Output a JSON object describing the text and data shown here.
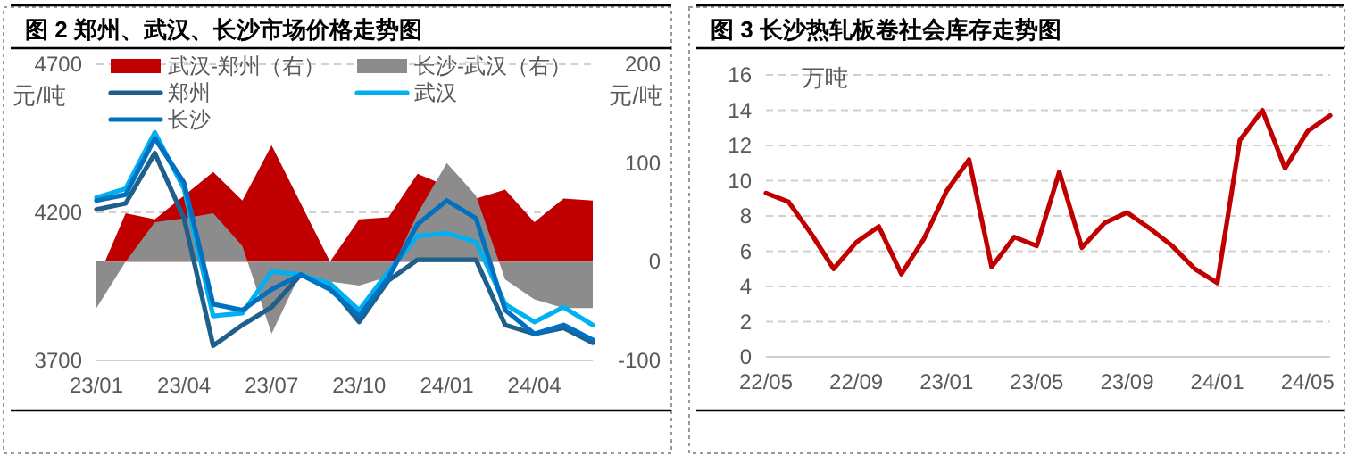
{
  "chart_data": [
    {
      "type": "line",
      "title": "图 2 郑州、武汉、长沙市场价格走势图",
      "ylabel": "元/吨",
      "y2label": "元/吨",
      "categories": [
        "23/01",
        null,
        null,
        "23/04",
        null,
        null,
        "23/07",
        null,
        null,
        "23/10",
        null,
        null,
        "24/01",
        null,
        null,
        "24/04",
        null,
        null
      ],
      "ylim": [
        3700,
        4700
      ],
      "yticks": [
        3700,
        4200,
        4700
      ],
      "y2lim": [
        -100,
        200
      ],
      "y2ticks": [
        -100,
        0,
        100,
        200
      ],
      "grid": "y",
      "legend": "top",
      "series": [
        {
          "name": "武汉-郑州（右）",
          "type": "area",
          "axis": "y2",
          "color": "#c00000",
          "values": [
            -20,
            49,
            43,
            67,
            91,
            62,
            118,
            null,
            0,
            43,
            45,
            89,
            null,
            64,
            73,
            40,
            64,
            62
          ]
        },
        {
          "name": "长沙-武汉（右）",
          "type": "area",
          "axis": "y2",
          "color": "#8c8c8c",
          "values": [
            -47,
            0,
            40,
            44,
            49,
            16,
            -73,
            -11,
            -20,
            -24,
            -15,
            49,
            100,
            67,
            -18,
            -38,
            -47,
            -47
          ]
        },
        {
          "name": "郑州",
          "type": "line",
          "axis": "y",
          "color": "#1f5f8b",
          "values": [
            4210,
            4230,
            4400,
            4180,
            3750,
            3820,
            3880,
            3990,
            3950,
            3830,
            3970,
            4040,
            4040,
            4040,
            3820,
            3790,
            3810,
            3760
          ]
        },
        {
          "name": "武汉",
          "type": "line",
          "axis": "y",
          "color": "#00b0f0",
          "values": [
            4250,
            4280,
            4470,
            4280,
            3850,
            3860,
            4000,
            3990,
            3960,
            3870,
            4000,
            4120,
            4130,
            4100,
            3890,
            3830,
            3880,
            3820
          ]
        },
        {
          "name": "长沙",
          "type": "line",
          "axis": "y",
          "color": "#0070c0",
          "values": [
            4240,
            4260,
            4450,
            4300,
            3890,
            3870,
            3940,
            3990,
            3940,
            3850,
            3980,
            4160,
            4240,
            4180,
            3870,
            3790,
            3820,
            3770
          ]
        }
      ]
    },
    {
      "type": "line",
      "title": "图 3 长沙热轧板卷社会库存走势图",
      "ylabel": "万吨",
      "categories": [
        "22/05",
        null,
        null,
        null,
        "22/09",
        null,
        null,
        null,
        "23/01",
        null,
        null,
        null,
        "23/05",
        null,
        null,
        null,
        "23/09",
        null,
        null,
        null,
        "24/01",
        null,
        null,
        null,
        "24/05",
        null
      ],
      "ylim": [
        0,
        16
      ],
      "yticks": [
        0,
        2,
        4,
        6,
        8,
        10,
        12,
        14,
        16
      ],
      "grid": "y",
      "series": [
        {
          "type": "line",
          "color": "#c00000",
          "values": [
            9.3,
            8.8,
            7.0,
            5.0,
            6.5,
            7.4,
            4.7,
            6.7,
            9.4,
            11.2,
            5.1,
            6.8,
            6.3,
            10.5,
            6.2,
            7.6,
            8.2,
            7.3,
            6.3,
            5.0,
            4.2,
            12.3,
            14.0,
            10.7,
            12.8,
            13.7
          ]
        }
      ]
    }
  ]
}
